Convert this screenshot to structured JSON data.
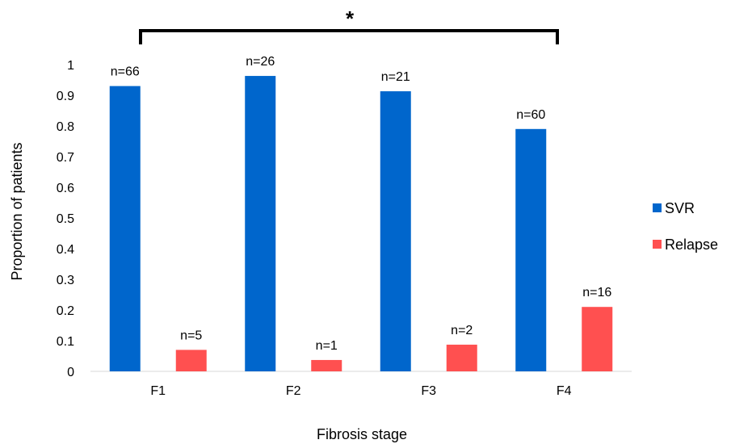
{
  "chart_data": {
    "type": "bar",
    "categories": [
      "F1",
      "F2",
      "F3",
      "F4"
    ],
    "series": [
      {
        "name": "SVR",
        "color": "#0066cc",
        "values": [
          0.93,
          0.963,
          0.913,
          0.79
        ],
        "labels": [
          "n=66",
          "n=26",
          "n=21",
          "n=60"
        ]
      },
      {
        "name": "Relapse",
        "color": "#ff5050",
        "values": [
          0.07,
          0.037,
          0.087,
          0.21
        ],
        "labels": [
          "n=5",
          "n=1",
          "n=2",
          "n=16"
        ]
      }
    ],
    "xlabel": "Fibrosis stage",
    "ylabel": "Proportion of patients",
    "ylim": [
      0,
      1
    ],
    "yticks": [
      "0",
      "0.1",
      "0.2",
      "0.3",
      "0.4",
      "0.5",
      "0.6",
      "0.7",
      "0.8",
      "0.9",
      "1"
    ],
    "grid": false,
    "legend": "right",
    "annotation": {
      "text": "*",
      "from": "F1",
      "to": "F4"
    }
  }
}
